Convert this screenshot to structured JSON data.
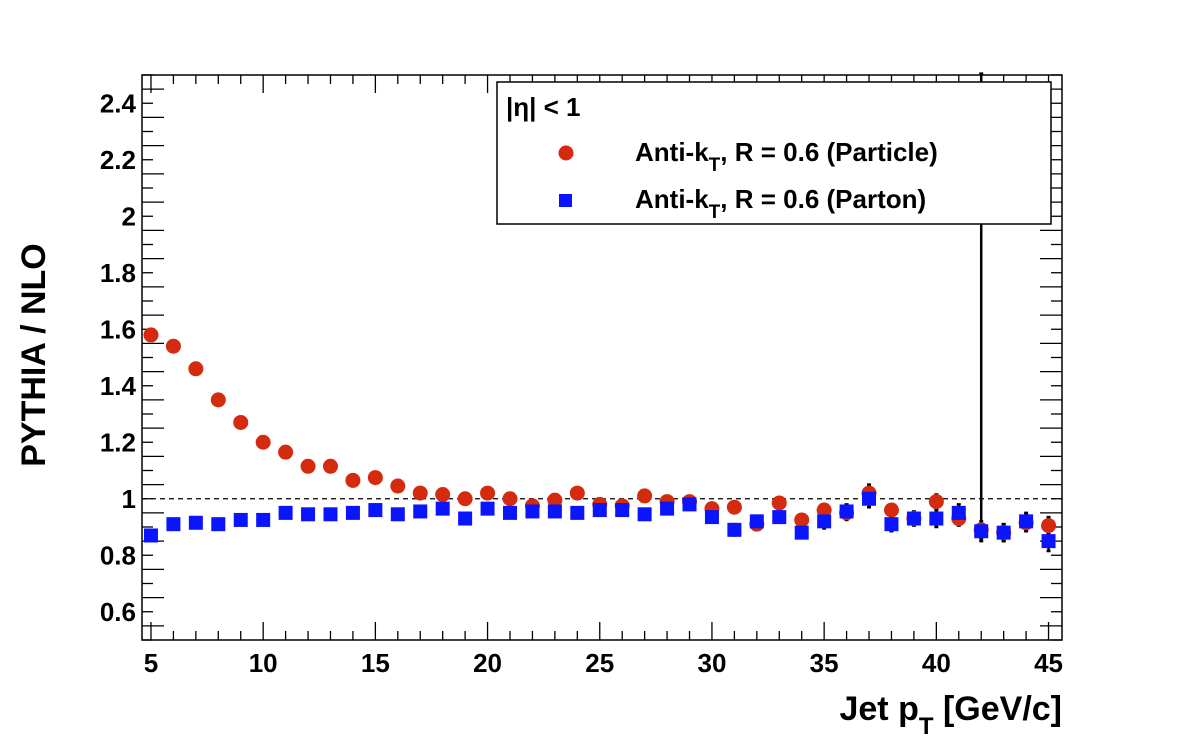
{
  "chart_data": {
    "type": "scatter",
    "xlabel": "Jet p",
    "xlabel_sub": "T",
    "xlabel_units": " [GeV/c]",
    "ylabel": "PYTHIA / NLO",
    "xlim": [
      4.6,
      45.6
    ],
    "ylim": [
      0.5,
      2.5
    ],
    "xticks": [
      5,
      10,
      15,
      20,
      25,
      30,
      35,
      40,
      45
    ],
    "yticks": [
      0.6,
      0.8,
      1,
      1.2,
      1.4,
      1.6,
      1.8,
      2,
      2.2,
      2.4
    ],
    "ytick_labels": [
      "0.6",
      "0.8",
      "1",
      "1.2",
      "1.4",
      "1.6",
      "1.8",
      "2",
      "2.2",
      "2.4"
    ],
    "reference_line": {
      "y": 1,
      "style": "dashed"
    },
    "legend": {
      "header": "|η| < 1",
      "position": "top-right",
      "entries": [
        {
          "text_pre": "Anti-k",
          "text_sub": "T",
          "text_post": ", R = 0.6 (Particle)",
          "marker": "circle",
          "color": "#d42a0e"
        },
        {
          "text_pre": "Anti-k",
          "text_sub": "T",
          "text_post": ", R = 0.6 (Parton)",
          "marker": "square",
          "color": "#0a14ff"
        }
      ]
    },
    "series": [
      {
        "name": "Anti-kT, R = 0.6 (Particle)",
        "marker": "circle",
        "color": "#d42a0e",
        "points": [
          {
            "x": 5,
            "y": 1.58
          },
          {
            "x": 6,
            "y": 1.54
          },
          {
            "x": 7,
            "y": 1.46
          },
          {
            "x": 8,
            "y": 1.35
          },
          {
            "x": 9,
            "y": 1.27
          },
          {
            "x": 10,
            "y": 1.2
          },
          {
            "x": 11,
            "y": 1.165
          },
          {
            "x": 12,
            "y": 1.115
          },
          {
            "x": 13,
            "y": 1.115
          },
          {
            "x": 14,
            "y": 1.065
          },
          {
            "x": 15,
            "y": 1.075
          },
          {
            "x": 16,
            "y": 1.045
          },
          {
            "x": 17,
            "y": 1.02
          },
          {
            "x": 18,
            "y": 1.015
          },
          {
            "x": 19,
            "y": 1.0
          },
          {
            "x": 20,
            "y": 1.02
          },
          {
            "x": 21,
            "y": 1.0
          },
          {
            "x": 22,
            "y": 0.975
          },
          {
            "x": 23,
            "y": 0.995
          },
          {
            "x": 24,
            "y": 1.02
          },
          {
            "x": 25,
            "y": 0.98
          },
          {
            "x": 26,
            "y": 0.975
          },
          {
            "x": 27,
            "y": 1.01
          },
          {
            "x": 28,
            "y": 0.99
          },
          {
            "x": 29,
            "y": 0.99
          },
          {
            "x": 30,
            "y": 0.965,
            "err": 0.01
          },
          {
            "x": 31,
            "y": 0.97,
            "err": 0.015
          },
          {
            "x": 32,
            "y": 0.91,
            "err": 0.02
          },
          {
            "x": 33,
            "y": 0.985,
            "err": 0.02
          },
          {
            "x": 34,
            "y": 0.925,
            "err": 0.02
          },
          {
            "x": 35,
            "y": 0.96,
            "err": 0.02
          },
          {
            "x": 36,
            "y": 0.95,
            "err": 0.025
          },
          {
            "x": 37,
            "y": 1.02,
            "err": 0.03
          },
          {
            "x": 38,
            "y": 0.96,
            "err": 0.02
          },
          {
            "x": 39,
            "y": 0.93,
            "err": 0.02
          },
          {
            "x": 40,
            "y": 0.99,
            "err": 0.025
          },
          {
            "x": 41,
            "y": 0.93,
            "err": 0.025
          },
          {
            "x": 42,
            "y": 0.89,
            "err": 0.03
          },
          {
            "x": 43,
            "y": 0.88,
            "err": 0.03
          },
          {
            "x": 44,
            "y": 0.915,
            "err": 0.03
          },
          {
            "x": 45,
            "y": 0.905,
            "err": 0.03
          }
        ]
      },
      {
        "name": "Anti-kT, R = 0.6 (Parton)",
        "marker": "square",
        "color": "#0a14ff",
        "points": [
          {
            "x": 5,
            "y": 0.87
          },
          {
            "x": 6,
            "y": 0.91
          },
          {
            "x": 7,
            "y": 0.915
          },
          {
            "x": 8,
            "y": 0.91
          },
          {
            "x": 9,
            "y": 0.925
          },
          {
            "x": 10,
            "y": 0.925
          },
          {
            "x": 11,
            "y": 0.95
          },
          {
            "x": 12,
            "y": 0.945
          },
          {
            "x": 13,
            "y": 0.945
          },
          {
            "x": 14,
            "y": 0.95
          },
          {
            "x": 15,
            "y": 0.96
          },
          {
            "x": 16,
            "y": 0.945
          },
          {
            "x": 17,
            "y": 0.955
          },
          {
            "x": 18,
            "y": 0.965
          },
          {
            "x": 19,
            "y": 0.93
          },
          {
            "x": 20,
            "y": 0.965
          },
          {
            "x": 21,
            "y": 0.95
          },
          {
            "x": 22,
            "y": 0.955
          },
          {
            "x": 23,
            "y": 0.955
          },
          {
            "x": 24,
            "y": 0.95
          },
          {
            "x": 25,
            "y": 0.96
          },
          {
            "x": 26,
            "y": 0.96
          },
          {
            "x": 27,
            "y": 0.945
          },
          {
            "x": 28,
            "y": 0.965
          },
          {
            "x": 29,
            "y": 0.98
          },
          {
            "x": 30,
            "y": 0.935,
            "err": 0.02
          },
          {
            "x": 31,
            "y": 0.89,
            "err": 0.02
          },
          {
            "x": 32,
            "y": 0.92,
            "err": 0.02
          },
          {
            "x": 33,
            "y": 0.935,
            "err": 0.02
          },
          {
            "x": 34,
            "y": 0.88,
            "err": 0.02
          },
          {
            "x": 35,
            "y": 0.92,
            "err": 0.025
          },
          {
            "x": 36,
            "y": 0.955,
            "err": 0.025
          },
          {
            "x": 37,
            "y": 1.0,
            "err": 0.03
          },
          {
            "x": 38,
            "y": 0.91,
            "err": 0.025
          },
          {
            "x": 39,
            "y": 0.93,
            "err": 0.025
          },
          {
            "x": 40,
            "y": 0.93,
            "err": 0.03
          },
          {
            "x": 41,
            "y": 0.95,
            "err": 0.03
          },
          {
            "x": 42,
            "y": 0.885,
            "err_up": 1.62,
            "err_down": 0.035
          },
          {
            "x": 43,
            "y": 0.88,
            "err": 0.03
          },
          {
            "x": 44,
            "y": 0.92,
            "err": 0.03
          },
          {
            "x": 45,
            "y": 0.85,
            "err": 0.035
          }
        ]
      }
    ]
  }
}
